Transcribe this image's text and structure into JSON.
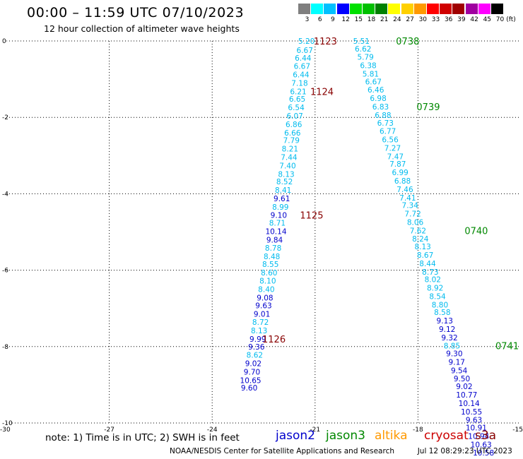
{
  "header": {
    "title": "00:00 – 11:59 UTC 07/10/2023",
    "subtitle": "12 hour collection of altimeter wave heights"
  },
  "color_legend": {
    "unit": "(ft)",
    "bins": [
      {
        "label": "3",
        "color": "#7f7f7f"
      },
      {
        "label": "6",
        "color": "#00ffff"
      },
      {
        "label": "9",
        "color": "#00c0ff"
      },
      {
        "label": "12",
        "color": "#0000ff"
      },
      {
        "label": "15",
        "color": "#00e000"
      },
      {
        "label": "18",
        "color": "#00c000"
      },
      {
        "label": "21",
        "color": "#008000"
      },
      {
        "label": "24",
        "color": "#ffff00"
      },
      {
        "label": "27",
        "color": "#ffd000"
      },
      {
        "label": "30",
        "color": "#ff9900"
      },
      {
        "label": "33",
        "color": "#ff0000"
      },
      {
        "label": "36",
        "color": "#d00000"
      },
      {
        "label": "39",
        "color": "#a00000"
      },
      {
        "label": "42",
        "color": "#a000a0"
      },
      {
        "label": "45",
        "color": "#ff00ff"
      },
      {
        "label": "70",
        "color": "#000000"
      }
    ]
  },
  "footer": {
    "note": "note: 1) Time is in UTC; 2) SWH is in feet",
    "satellites": [
      {
        "label": "jason2",
        "color": "#0000cc"
      },
      {
        "label": "jason3",
        "color": "#008800"
      },
      {
        "label": "altika",
        "color": "#ff9900"
      },
      {
        "label": "cryosat",
        "color": "#cc0000"
      },
      {
        "label": "s3a",
        "color": "#880000"
      }
    ],
    "credit": "NOAA/NESDIS Center for Satellite Applications and Research",
    "timestamp": "Jul 12 08:29:23 UTC 2023"
  },
  "chart_data": {
    "type": "scatter",
    "title": "00:00 – 11:59 UTC 07/10/2023",
    "subtitle": "12 hour collection of altimeter wave heights",
    "xlabel": "",
    "ylabel": "",
    "xlim": [
      -30,
      -15
    ],
    "ylim": [
      -10,
      0
    ],
    "x_ticks": [
      -30,
      -27,
      -24,
      -21,
      -18,
      -15
    ],
    "y_ticks": [
      0,
      -2,
      -4,
      -6,
      -8,
      -10
    ],
    "grid": true,
    "colors": {
      "blue": "#0000cc",
      "cyan": "#00bbee",
      "time_left": "#880000",
      "time_right": "#008800"
    },
    "series": [
      {
        "color_key": "time_left",
        "values": [
          {
            "lon": -21.25,
            "lat": 0,
            "swh": "5.20",
            "c": "cyan"
          },
          {
            "lon": -21.3,
            "lat": -0.24,
            "swh": "6.67",
            "c": "cyan"
          },
          {
            "lon": -21.35,
            "lat": -0.44,
            "swh": "6.44",
            "c": "cyan"
          },
          {
            "lon": -21.38,
            "lat": -0.66,
            "swh": "6.67",
            "c": "cyan"
          },
          {
            "lon": -21.41,
            "lat": -0.88,
            "swh": "6.44",
            "c": "cyan"
          },
          {
            "lon": -21.45,
            "lat": -1.1,
            "swh": "7.18",
            "c": "cyan"
          },
          {
            "lon": -21.49,
            "lat": -1.32,
            "swh": "6.21",
            "c": "cyan"
          },
          {
            "lon": -21.52,
            "lat": -1.52,
            "swh": "6.65",
            "c": "cyan"
          },
          {
            "lon": -21.55,
            "lat": -1.74,
            "swh": "6.54",
            "c": "cyan"
          },
          {
            "lon": -21.59,
            "lat": -1.96,
            "swh": "6.07",
            "c": "cyan"
          },
          {
            "lon": -21.62,
            "lat": -2.18,
            "swh": "6.86",
            "c": "cyan"
          },
          {
            "lon": -21.66,
            "lat": -2.4,
            "swh": "6.66",
            "c": "cyan"
          },
          {
            "lon": -21.69,
            "lat": -2.6,
            "swh": "7.79",
            "c": "cyan"
          },
          {
            "lon": -21.73,
            "lat": -2.82,
            "swh": "8.21",
            "c": "cyan"
          },
          {
            "lon": -21.76,
            "lat": -3.04,
            "swh": "7.44",
            "c": "cyan"
          },
          {
            "lon": -21.8,
            "lat": -3.26,
            "swh": "7.40",
            "c": "cyan"
          },
          {
            "lon": -21.84,
            "lat": -3.48,
            "swh": "8.13",
            "c": "cyan"
          },
          {
            "lon": -21.89,
            "lat": -3.68,
            "swh": "8.52",
            "c": "cyan"
          },
          {
            "lon": -21.93,
            "lat": -3.9,
            "swh": "8.41",
            "c": "cyan"
          },
          {
            "lon": -21.97,
            "lat": -4.12,
            "swh": "9.61",
            "c": "blue"
          },
          {
            "lon": -22.01,
            "lat": -4.34,
            "swh": "8.99",
            "c": "cyan"
          },
          {
            "lon": -22.06,
            "lat": -4.56,
            "swh": "9.10",
            "c": "blue"
          },
          {
            "lon": -22.1,
            "lat": -4.76,
            "swh": "8.71",
            "c": "cyan"
          },
          {
            "lon": -22.14,
            "lat": -4.98,
            "swh": "10.14",
            "c": "blue"
          },
          {
            "lon": -22.18,
            "lat": -5.2,
            "swh": "9.84",
            "c": "blue"
          },
          {
            "lon": -22.22,
            "lat": -5.42,
            "swh": "8.78",
            "c": "cyan"
          },
          {
            "lon": -22.26,
            "lat": -5.64,
            "swh": "8.48",
            "c": "cyan"
          },
          {
            "lon": -22.3,
            "lat": -5.84,
            "swh": "8.55",
            "c": "cyan"
          },
          {
            "lon": -22.34,
            "lat": -6.06,
            "swh": "8.60",
            "c": "cyan"
          },
          {
            "lon": -22.38,
            "lat": -6.28,
            "swh": "8.10",
            "c": "cyan"
          },
          {
            "lon": -22.42,
            "lat": -6.5,
            "swh": "8.40",
            "c": "cyan"
          },
          {
            "lon": -22.46,
            "lat": -6.72,
            "swh": "9.08",
            "c": "blue"
          },
          {
            "lon": -22.5,
            "lat": -6.92,
            "swh": "9.63",
            "c": "blue"
          },
          {
            "lon": -22.55,
            "lat": -7.14,
            "swh": "9.01",
            "c": "blue"
          },
          {
            "lon": -22.59,
            "lat": -7.36,
            "swh": "8.72",
            "c": "cyan"
          },
          {
            "lon": -22.63,
            "lat": -7.58,
            "swh": "8.13",
            "c": "cyan"
          },
          {
            "lon": -22.67,
            "lat": -7.8,
            "swh": "9.99",
            "c": "blue"
          },
          {
            "lon": -22.71,
            "lat": -8.0,
            "swh": "9.36",
            "c": "blue"
          },
          {
            "lon": -22.76,
            "lat": -8.22,
            "swh": "8.62",
            "c": "cyan"
          },
          {
            "lon": -22.8,
            "lat": -8.44,
            "swh": "9.02",
            "c": "blue"
          },
          {
            "lon": -22.84,
            "lat": -8.66,
            "swh": "9.70",
            "c": "blue"
          },
          {
            "lon": -22.88,
            "lat": -8.88,
            "swh": "10.65",
            "c": "blue"
          },
          {
            "lon": -22.92,
            "lat": -9.08,
            "swh": "9.60",
            "c": "blue"
          }
        ],
        "time_labels": [
          {
            "label": "1123",
            "lon": -20.7,
            "lat": 0
          },
          {
            "label": "1124",
            "lon": -20.8,
            "lat": -1.32
          },
          {
            "label": "1125",
            "lon": -21.1,
            "lat": -4.56
          },
          {
            "label": "1126",
            "lon": -22.2,
            "lat": -7.8
          }
        ]
      },
      {
        "color_key": "time_right",
        "values": [
          {
            "lon": -19.65,
            "lat": 0,
            "swh": "5.51",
            "c": "cyan"
          },
          {
            "lon": -19.6,
            "lat": -0.2,
            "swh": "6.62",
            "c": "cyan"
          },
          {
            "lon": -19.53,
            "lat": -0.42,
            "swh": "5.79",
            "c": "cyan"
          },
          {
            "lon": -19.45,
            "lat": -0.64,
            "swh": "6.38",
            "c": "cyan"
          },
          {
            "lon": -19.38,
            "lat": -0.86,
            "swh": "5.81",
            "c": "cyan"
          },
          {
            "lon": -19.3,
            "lat": -1.06,
            "swh": "6.67",
            "c": "cyan"
          },
          {
            "lon": -19.23,
            "lat": -1.28,
            "swh": "6.46",
            "c": "cyan"
          },
          {
            "lon": -19.16,
            "lat": -1.5,
            "swh": "6.98",
            "c": "cyan"
          },
          {
            "lon": -19.09,
            "lat": -1.72,
            "swh": "6.83",
            "c": "cyan"
          },
          {
            "lon": -19.02,
            "lat": -1.94,
            "swh": "6.88",
            "c": "cyan"
          },
          {
            "lon": -18.95,
            "lat": -2.14,
            "swh": "6.73",
            "c": "cyan"
          },
          {
            "lon": -18.88,
            "lat": -2.36,
            "swh": "6.77",
            "c": "cyan"
          },
          {
            "lon": -18.81,
            "lat": -2.58,
            "swh": "6.56",
            "c": "cyan"
          },
          {
            "lon": -18.74,
            "lat": -2.8,
            "swh": "7.27",
            "c": "cyan"
          },
          {
            "lon": -18.66,
            "lat": -3.02,
            "swh": "7.47",
            "c": "cyan"
          },
          {
            "lon": -18.59,
            "lat": -3.22,
            "swh": "7.87",
            "c": "cyan"
          },
          {
            "lon": -18.52,
            "lat": -3.44,
            "swh": "6.99",
            "c": "cyan"
          },
          {
            "lon": -18.45,
            "lat": -3.66,
            "swh": "6.88",
            "c": "cyan"
          },
          {
            "lon": -18.38,
            "lat": -3.88,
            "swh": "7.46",
            "c": "cyan"
          },
          {
            "lon": -18.3,
            "lat": -4.1,
            "swh": "7.41",
            "c": "cyan"
          },
          {
            "lon": -18.23,
            "lat": -4.3,
            "swh": "7.34",
            "c": "cyan"
          },
          {
            "lon": -18.15,
            "lat": -4.52,
            "swh": "7.72",
            "c": "cyan"
          },
          {
            "lon": -18.08,
            "lat": -4.74,
            "swh": "8.06",
            "c": "cyan"
          },
          {
            "lon": -18.0,
            "lat": -4.96,
            "swh": "7.62",
            "c": "cyan"
          },
          {
            "lon": -17.93,
            "lat": -5.18,
            "swh": "8.24",
            "c": "cyan"
          },
          {
            "lon": -17.86,
            "lat": -5.38,
            "swh": "8.13",
            "c": "cyan"
          },
          {
            "lon": -17.79,
            "lat": -5.6,
            "swh": "8.67",
            "c": "cyan"
          },
          {
            "lon": -17.72,
            "lat": -5.82,
            "swh": "8.44",
            "c": "cyan"
          },
          {
            "lon": -17.64,
            "lat": -6.04,
            "swh": "8.73",
            "c": "cyan"
          },
          {
            "lon": -17.57,
            "lat": -6.24,
            "swh": "8.02",
            "c": "cyan"
          },
          {
            "lon": -17.5,
            "lat": -6.46,
            "swh": "8.92",
            "c": "cyan"
          },
          {
            "lon": -17.43,
            "lat": -6.68,
            "swh": "8.54",
            "c": "cyan"
          },
          {
            "lon": -17.36,
            "lat": -6.9,
            "swh": "8.80",
            "c": "cyan"
          },
          {
            "lon": -17.29,
            "lat": -7.1,
            "swh": "8.58",
            "c": "cyan"
          },
          {
            "lon": -17.22,
            "lat": -7.32,
            "swh": "9.13",
            "c": "blue"
          },
          {
            "lon": -17.15,
            "lat": -7.54,
            "swh": "9.12",
            "c": "blue"
          },
          {
            "lon": -17.08,
            "lat": -7.76,
            "swh": "9.32",
            "c": "blue"
          },
          {
            "lon": -17.01,
            "lat": -7.98,
            "swh": "8.85",
            "c": "cyan"
          },
          {
            "lon": -16.94,
            "lat": -8.18,
            "swh": "9.30",
            "c": "blue"
          },
          {
            "lon": -16.87,
            "lat": -8.4,
            "swh": "9.17",
            "c": "blue"
          },
          {
            "lon": -16.8,
            "lat": -8.62,
            "swh": "9.54",
            "c": "blue"
          },
          {
            "lon": -16.72,
            "lat": -8.84,
            "swh": "9.50",
            "c": "blue"
          },
          {
            "lon": -16.65,
            "lat": -9.04,
            "swh": "9.02",
            "c": "blue"
          },
          {
            "lon": -16.58,
            "lat": -9.26,
            "swh": "10.77",
            "c": "blue"
          },
          {
            "lon": -16.51,
            "lat": -9.48,
            "swh": "10.14",
            "c": "blue"
          },
          {
            "lon": -16.44,
            "lat": -9.7,
            "swh": "10.55",
            "c": "blue"
          },
          {
            "lon": -16.37,
            "lat": -9.92,
            "swh": "9.63",
            "c": "blue"
          },
          {
            "lon": -16.3,
            "lat": -10.12,
            "swh": "10.91",
            "c": "blue"
          },
          {
            "lon": -16.23,
            "lat": -10.34,
            "swh": "10.94",
            "c": "blue"
          },
          {
            "lon": -16.16,
            "lat": -10.56,
            "swh": "10.63",
            "c": "blue"
          },
          {
            "lon": -16.09,
            "lat": -10.78,
            "swh": "10.58",
            "c": "blue"
          }
        ],
        "time_labels": [
          {
            "label": "0738",
            "lon": -18.3,
            "lat": 0
          },
          {
            "label": "0739",
            "lon": -17.7,
            "lat": -1.72
          },
          {
            "label": "0740",
            "lon": -16.3,
            "lat": -4.96
          },
          {
            "label": "0741",
            "lon": -15.4,
            "lat": -7.98
          }
        ]
      }
    ]
  }
}
